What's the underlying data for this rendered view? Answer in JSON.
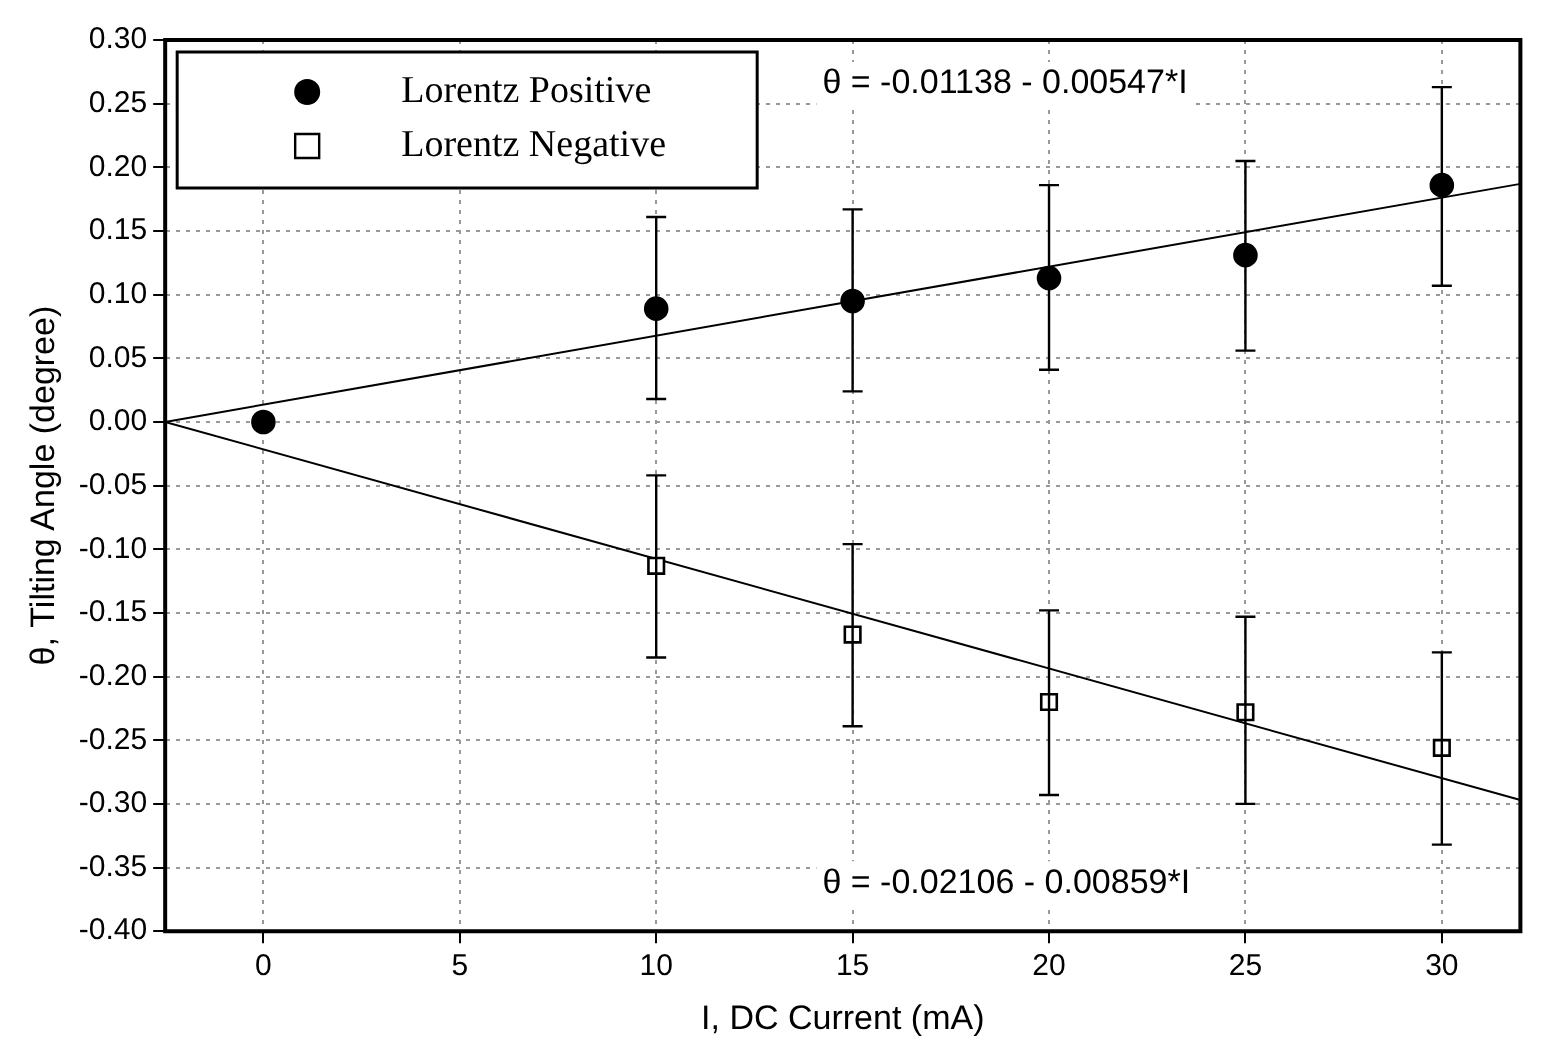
{
  "chart_data": {
    "type": "scatter",
    "xlabel": "I, DC Current (mA)",
    "ylabel": "θ, Tilting Angle (degree)",
    "xlim": [
      -2.5,
      32
    ],
    "xticks": [
      0,
      5,
      10,
      15,
      20,
      25,
      30
    ],
    "ylim": [
      -0.4,
      0.3
    ],
    "yticks": [
      {
        "value": -0.4,
        "label": "-0.40"
      },
      {
        "value": -0.35,
        "label": "-0.35"
      },
      {
        "value": -0.3,
        "label": "-0.30"
      },
      {
        "value": -0.25,
        "label": "-0.25"
      },
      {
        "value": -0.2,
        "label": "-0.20"
      },
      {
        "value": -0.15,
        "label": "-0.15"
      },
      {
        "value": -0.1,
        "label": "-0.10"
      },
      {
        "value": -0.05,
        "label": "-0.05"
      },
      {
        "value": 0,
        "label": "0.00"
      },
      {
        "value": 0.05,
        "label": "0.05"
      },
      {
        "value": 0.1,
        "label": "0.10"
      },
      {
        "value": 0.15,
        "label": "0.15"
      },
      {
        "value": 0.2,
        "label": "0.20"
      },
      {
        "value": 0.25,
        "label": "0.25"
      },
      {
        "value": 0.3,
        "label": "0.30"
      }
    ],
    "grid": true,
    "legend": "top left",
    "series": [
      {
        "name": "Lorentz Positive",
        "type": "scatter",
        "marker": "circle",
        "color": "#000000",
        "x": [
          0,
          10,
          15,
          20,
          25,
          30
        ],
        "values": [
          0.0,
          0.089,
          0.095,
          0.113,
          0.131,
          0.186
        ],
        "errors": [
          null,
          [
            0.018,
            0.161
          ],
          [
            0.024,
            0.167
          ],
          [
            0.041,
            0.186
          ],
          [
            0.056,
            0.205
          ],
          [
            0.107,
            0.263
          ]
        ]
      },
      {
        "name": "Lorentz Negative",
        "type": "scatter",
        "marker": "square",
        "color": "#000000",
        "x": [
          10,
          15,
          20,
          25,
          30
        ],
        "values": [
          -0.113,
          -0.167,
          -0.22,
          -0.228,
          -0.256
        ],
        "errors": [
          [
            -0.185,
            -0.042
          ],
          [
            -0.239,
            -0.096
          ],
          [
            -0.293,
            -0.148
          ],
          [
            -0.3,
            -0.153
          ],
          [
            -0.332,
            -0.181
          ]
        ]
      },
      {
        "type": "line",
        "marker": "none",
        "line_style": "solid",
        "color": "#000000",
        "x": [
          -2.5,
          32
        ],
        "values": [
          0.0,
          0.187
        ]
      },
      {
        "type": "line",
        "marker": "none",
        "line_style": "solid",
        "color": "#000000",
        "x": [
          -2.5,
          32
        ],
        "values": [
          0.0,
          -0.297
        ]
      }
    ],
    "annotations": [
      "θ = -0.01138 - 0.00547*I",
      "θ = -0.02106 - 0.00859*I"
    ]
  }
}
